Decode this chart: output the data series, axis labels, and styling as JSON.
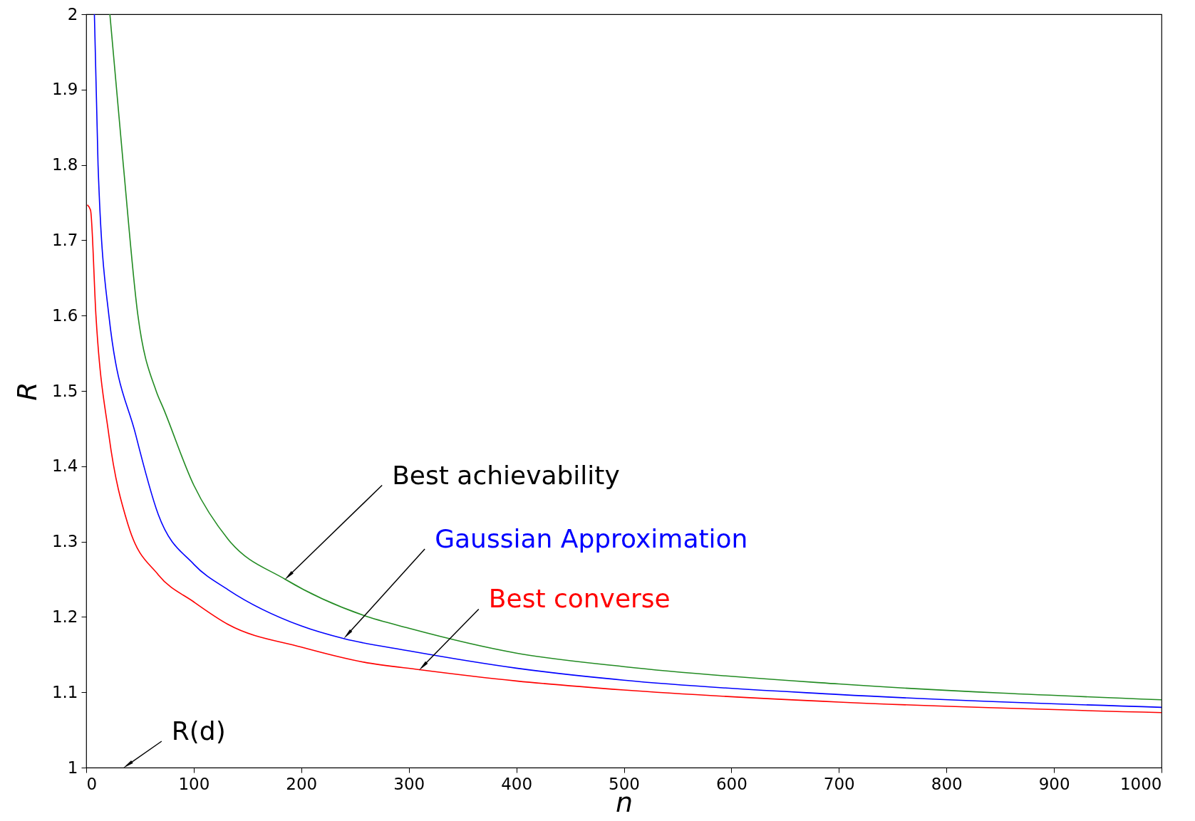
{
  "chart_data": {
    "type": "line",
    "xlabel": "n",
    "ylabel": "R",
    "xlim": [
      0,
      1000
    ],
    "ylim": [
      1,
      2
    ],
    "xticks": [
      0,
      100,
      200,
      300,
      400,
      500,
      600,
      700,
      800,
      900,
      1000
    ],
    "yticks": [
      1,
      1.1,
      1.2,
      1.3,
      1.4,
      1.5,
      1.6,
      1.7,
      1.8,
      1.9,
      2
    ],
    "marker": "none",
    "line_style": "solid",
    "series": [
      {
        "color": "#228b22",
        "x": [
          22,
          34.5,
          48,
          65,
          72,
          100,
          132,
          185,
          258,
          300,
          400,
          500,
          700,
          1000
        ],
        "values": [
          2.0,
          1.8,
          1.601,
          1.5,
          1.476,
          1.375,
          1.303,
          1.25,
          1.202,
          1.185,
          1.152,
          1.134,
          1.111,
          1.09
        ]
      },
      {
        "color": "#0000ff",
        "x": [
          7.6,
          11,
          21,
          46,
          67,
          100,
          132,
          200,
          240,
          300,
          400,
          500,
          700,
          1000
        ],
        "values": [
          2.0,
          1.8,
          1.601,
          1.442,
          1.336,
          1.27,
          1.236,
          1.188,
          1.171,
          1.155,
          1.132,
          1.116,
          1.097,
          1.08
        ]
      },
      {
        "color": "#ff0000",
        "x": [
          1,
          4,
          9,
          21,
          39,
          67,
          100,
          132,
          200,
          258,
          310,
          400,
          500,
          700,
          1000
        ],
        "values": [
          1.747,
          1.74,
          1.601,
          1.442,
          1.322,
          1.256,
          1.22,
          1.19,
          1.16,
          1.14,
          1.13,
          1.115,
          1.103,
          1.087,
          1.073
        ]
      }
    ],
    "annotations": [
      {
        "text": "Best achievability",
        "x": 185,
        "y": 1.25
      },
      {
        "text": "Gaussian Approximation",
        "x": 240,
        "y": 1.172
      },
      {
        "text": "Best converse",
        "x": 310,
        "y": 1.13
      },
      "R(d)"
    ]
  }
}
